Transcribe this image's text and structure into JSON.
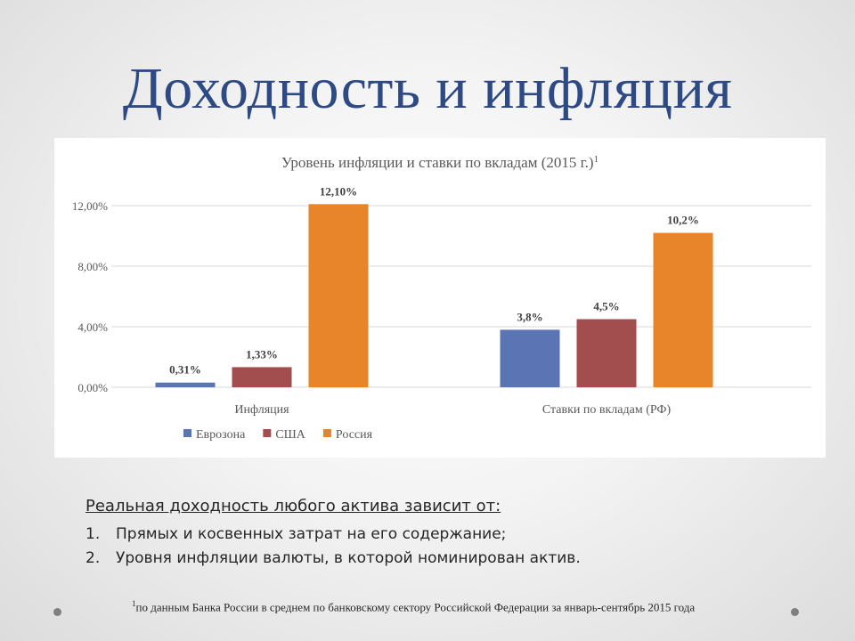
{
  "slide": {
    "title": "Доходность и инфляция"
  },
  "chart_data": {
    "type": "bar",
    "title": "Уровень инфляции и ставки по вкладам (2015 г.)",
    "title_superscript": "1",
    "categories": [
      "Инфляция",
      "Ставки по вкладам (РФ)"
    ],
    "ylim": [
      0,
      12
    ],
    "y_ticks": [
      0,
      4,
      8,
      12
    ],
    "y_tick_labels": [
      "0,00%",
      "4,00%",
      "8,00%",
      "12,00%"
    ],
    "grid": true,
    "legend_position": "bottom-left",
    "series": [
      {
        "name": "Еврозона",
        "color": "#5b74b4",
        "values": [
          0.31,
          3.8
        ],
        "labels": [
          "0,31%",
          "3,8%"
        ]
      },
      {
        "name": "США",
        "color": "#a34e4e",
        "values": [
          1.33,
          4.5
        ],
        "labels": [
          "1,33%",
          "4,5%"
        ]
      },
      {
        "name": "Россия",
        "color": "#e8842a",
        "values": [
          12.1,
          10.2
        ],
        "labels": [
          "12,10%",
          "10,2%"
        ]
      }
    ]
  },
  "body": {
    "heading": "Реальная доходность любого актива зависит от:",
    "items": [
      {
        "num": "1.",
        "text": "Прямых и косвенных затрат на его содержание;"
      },
      {
        "num": "2.",
        "text": "Уровня инфляции валюты, в которой номинирован актив."
      }
    ]
  },
  "footnote": {
    "marker": "1",
    "text": "по данным Банка России в среднем по банковскому сектору Российской Федерации за январь-сентябрь 2015 года"
  }
}
